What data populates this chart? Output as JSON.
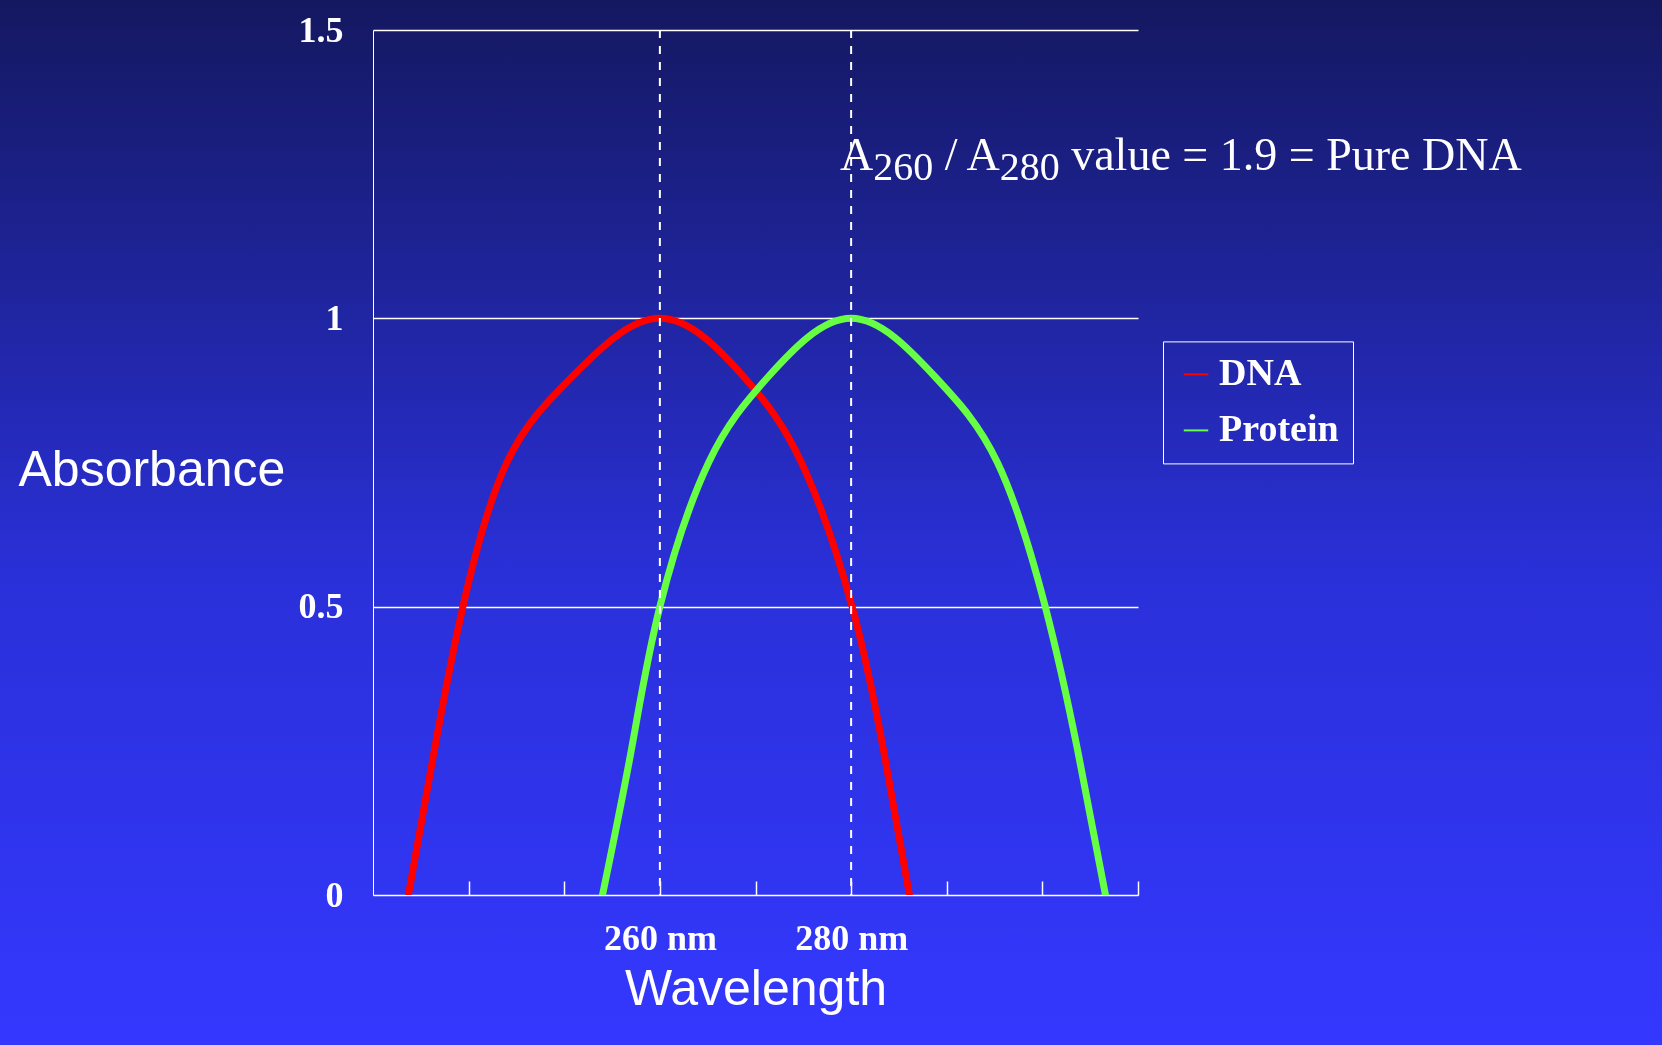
{
  "chart_data": {
    "type": "line",
    "xlabel": "Wavelength",
    "ylabel": "Absorbance",
    "annotations": [
      "A$_{260}$ / A$_{280}$ value = 1.9 = Pure DNA"
    ],
    "series": [
      {
        "name": "DNA",
        "color": "#ff0000",
        "x": [
          233.7,
          236.4,
          239.4,
          244,
          250.9,
          260,
          268.7,
          274.8,
          280.1,
          283.4,
          286.1
        ],
        "values": [
          0,
          0.25,
          0.5,
          0.75,
          0.9,
          1,
          0.9,
          0.75,
          0.5,
          0.25,
          0
        ]
      },
      {
        "name": "Protein",
        "color": "#66ff44",
        "x": [
          254,
          257,
          260,
          265.1,
          271.4,
          280,
          288.7,
          295.3,
          300.3,
          303.7,
          306.6
        ],
        "values": [
          0,
          0.25,
          0.5,
          0.75,
          0.9,
          1,
          0.9,
          0.75,
          0.5,
          0.25,
          0
        ]
      }
    ],
    "xlim": [
      230,
      310
    ],
    "xticks": [
      {
        "value": 240,
        "label": null
      },
      {
        "value": 250,
        "label": null
      },
      {
        "value": 260,
        "label": "260 nm"
      },
      {
        "value": 270,
        "label": null
      },
      {
        "value": 280,
        "label": "280 nm"
      },
      {
        "value": 290,
        "label": null
      },
      {
        "value": 300,
        "label": null
      },
      {
        "value": 310,
        "label": null
      }
    ],
    "ylim": [
      0,
      1.5
    ],
    "yticks": [
      0,
      0.5,
      1,
      1.5
    ],
    "ref_lines": [
      {
        "axis": "x",
        "value": 260,
        "color": "#ffffff",
        "line_style": "dashed"
      },
      {
        "axis": "x",
        "value": 280,
        "color": "#ffffff",
        "line_style": "dashed"
      }
    ],
    "grid": "y",
    "legend": "right",
    "line_style": "solid"
  }
}
